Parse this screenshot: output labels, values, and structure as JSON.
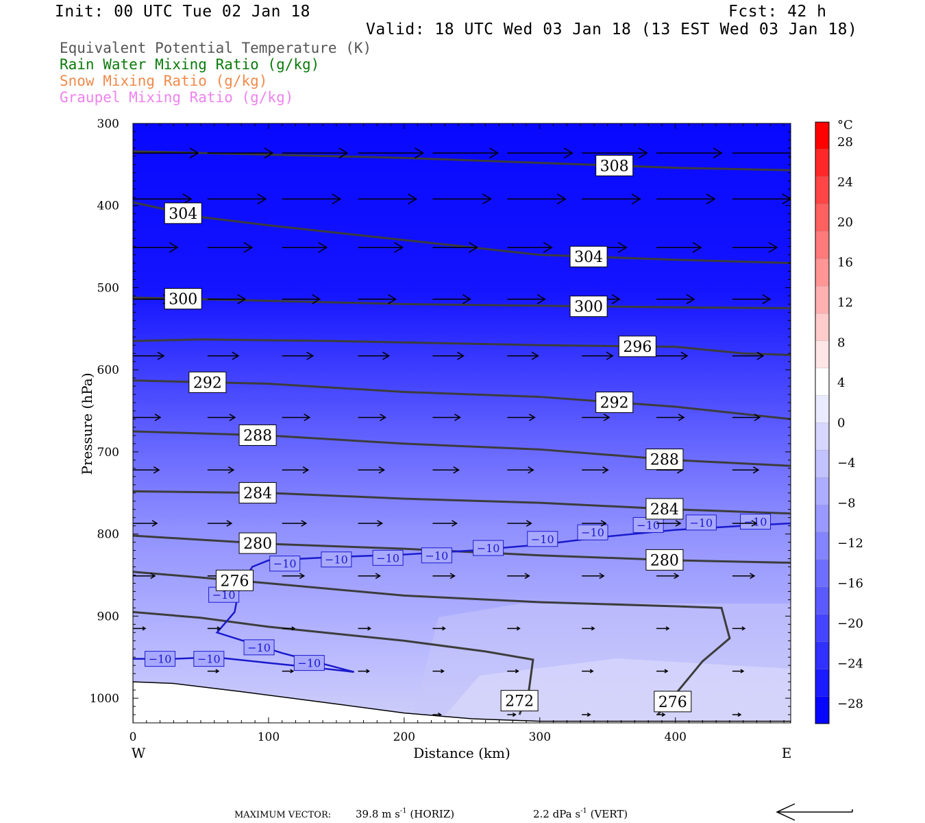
{
  "header": {
    "init": "Init: 00 UTC Tue 02 Jan 18",
    "fcst": "Fcst:   42 h",
    "valid": "Valid: 18 UTC Wed 03 Jan 18 (13 EST Wed 03 Jan 18)"
  },
  "fields": [
    {
      "label": "Equivalent Potential Temperature (K)",
      "color": "#555555"
    },
    {
      "label": "Rain Water Mixing Ratio (g/kg)",
      "color": "#0a7a0a"
    },
    {
      "label": "Snow Mixing Ratio (g/kg)",
      "color": "#f08a4b"
    },
    {
      "label": "Graupel Mixing Ratio (g/kg)",
      "color": "#ee82ee"
    }
  ],
  "footer": {
    "max_vector_label": "MAXIMUM VECTOR:",
    "horiz": "39.8 m s",
    "horiz_suffix": "(HORIZ)",
    "vert": "2.2 dPa s",
    "vert_suffix": "(VERT)",
    "exp": "-1"
  },
  "chart_data": {
    "type": "heatmap",
    "xlabel": "Distance (km)",
    "ylabel": "Pressure (hPa)",
    "x_ticks": [
      0,
      100,
      200,
      300,
      400
    ],
    "y_ticks": [
      300,
      400,
      500,
      600,
      700,
      800,
      900,
      1000
    ],
    "xlim": [
      0,
      485
    ],
    "ylim": [
      300,
      1030
    ],
    "y_inverted": true,
    "west_label": "W",
    "east_label": "E",
    "colorbar": {
      "unit": "°C",
      "ticks": [
        28,
        24,
        20,
        16,
        12,
        8,
        4,
        0,
        -4,
        -8,
        -12,
        -16,
        -20,
        -24,
        -28
      ],
      "tick_labels": [
        "28",
        "24",
        "20",
        "16",
        "12",
        "8",
        "4",
        "0",
        "−4",
        "−8",
        "−12",
        "−16",
        "−20",
        "−24",
        "−28"
      ],
      "colors": [
        "#ff0000",
        "#ff2828",
        "#ff4545",
        "#ff6060",
        "#ff7a7a",
        "#ff9595",
        "#ffb0b0",
        "#ffcccc",
        "#ffe6e6",
        "#ffffff",
        "#ebebff",
        "#d6d6ff",
        "#c2c2ff",
        "#adadff",
        "#9999ff",
        "#8484ff",
        "#6f6fff",
        "#5a5aff",
        "#4545ff",
        "#3030ff",
        "#1b1bff",
        "#0606ff"
      ]
    },
    "theta_e_contours": [
      {
        "value": 308,
        "points": [
          [
            0,
            334
          ],
          [
            100,
            338
          ],
          [
            200,
            342
          ],
          [
            300,
            348
          ],
          [
            400,
            354
          ],
          [
            485,
            357
          ]
        ],
        "labels": [
          {
            "text": "308",
            "x": 355
          }
        ]
      },
      {
        "value": 304,
        "points": [
          [
            0,
            396
          ],
          [
            50,
            414
          ],
          [
            100,
            424
          ],
          [
            200,
            442
          ],
          [
            300,
            460
          ],
          [
            400,
            466
          ],
          [
            485,
            470
          ]
        ],
        "labels": [
          {
            "text": "304",
            "x": 37
          },
          {
            "text": "304",
            "x": 336
          }
        ]
      },
      {
        "value": 300,
        "points": [
          [
            0,
            512
          ],
          [
            100,
            516
          ],
          [
            200,
            520
          ],
          [
            300,
            522
          ],
          [
            400,
            524
          ],
          [
            485,
            525
          ]
        ],
        "labels": [
          {
            "text": "300",
            "x": 37
          },
          {
            "text": "300",
            "x": 336
          }
        ]
      },
      {
        "value": 296,
        "points": [
          [
            0,
            565
          ],
          [
            50,
            563
          ],
          [
            150,
            565
          ],
          [
            300,
            570
          ],
          [
            400,
            572
          ],
          [
            450,
            580
          ],
          [
            485,
            582
          ]
        ],
        "labels": [
          {
            "text": "296",
            "x": 372
          }
        ]
      },
      {
        "value": 292,
        "points": [
          [
            0,
            613
          ],
          [
            100,
            617
          ],
          [
            200,
            627
          ],
          [
            300,
            633
          ],
          [
            400,
            645
          ],
          [
            485,
            660
          ]
        ],
        "labels": [
          {
            "text": "292",
            "x": 55
          },
          {
            "text": "292",
            "x": 355
          }
        ]
      },
      {
        "value": 288,
        "points": [
          [
            0,
            675
          ],
          [
            100,
            680
          ],
          [
            200,
            690
          ],
          [
            300,
            697
          ],
          [
            400,
            710
          ],
          [
            485,
            717
          ]
        ],
        "labels": [
          {
            "text": "288",
            "x": 92
          },
          {
            "text": "288",
            "x": 392
          }
        ]
      },
      {
        "value": 284,
        "points": [
          [
            0,
            748
          ],
          [
            100,
            750
          ],
          [
            200,
            757
          ],
          [
            300,
            762
          ],
          [
            400,
            770
          ],
          [
            485,
            775
          ]
        ],
        "labels": [
          {
            "text": "284",
            "x": 92
          },
          {
            "text": "284",
            "x": 392
          }
        ]
      },
      {
        "value": 280,
        "points": [
          [
            0,
            802
          ],
          [
            100,
            812
          ],
          [
            200,
            818
          ],
          [
            300,
            826
          ],
          [
            400,
            832
          ],
          [
            485,
            835
          ]
        ],
        "labels": [
          {
            "text": "280",
            "x": 92
          },
          {
            "text": "280",
            "x": 392
          }
        ]
      },
      {
        "value": 276,
        "points": [
          [
            0,
            846
          ],
          [
            100,
            860
          ],
          [
            200,
            875
          ],
          [
            300,
            883
          ],
          [
            400,
            888
          ],
          [
            434,
            890
          ],
          [
            440,
            927
          ],
          [
            420,
            955
          ],
          [
            400,
            995
          ],
          [
            387,
            1020
          ]
        ],
        "labels": [
          {
            "text": "276",
            "x": 75
          },
          {
            "text": "276",
            "x": 398,
            "p": 1004
          }
        ]
      },
      {
        "value": 272,
        "points": [
          [
            0,
            895
          ],
          [
            50,
            902
          ],
          [
            100,
            913
          ],
          [
            200,
            930
          ],
          [
            260,
            943
          ],
          [
            295,
            953
          ],
          [
            292,
            990
          ],
          [
            285,
            1020
          ]
        ],
        "labels": [
          {
            "text": "272",
            "x": 285,
            "p": 1003
          }
        ]
      }
    ],
    "isotherm_minus10": {
      "label": "−10",
      "points": [
        [
          0,
          952
        ],
        [
          30,
          952
        ],
        [
          60,
          950
        ],
        [
          100,
          957
        ],
        [
          130,
          962
        ],
        [
          163,
          968
        ],
        [
          110,
          945
        ],
        [
          62,
          920
        ],
        [
          75,
          895
        ],
        [
          78,
          868
        ],
        [
          88,
          840
        ],
        [
          100,
          832
        ],
        [
          150,
          828
        ],
        [
          200,
          825
        ],
        [
          250,
          820
        ],
        [
          300,
          813
        ],
        [
          350,
          803
        ],
        [
          400,
          795
        ],
        [
          450,
          790
        ],
        [
          485,
          787
        ]
      ],
      "label_positions": [
        [
          20,
          952
        ],
        [
          56,
          952
        ],
        [
          93,
          938
        ],
        [
          130,
          957
        ],
        [
          67,
          874
        ],
        [
          112,
          836
        ],
        [
          150,
          831
        ],
        [
          188,
          829
        ],
        [
          224,
          826
        ],
        [
          262,
          817
        ],
        [
          302,
          806
        ],
        [
          339,
          798
        ],
        [
          380,
          789
        ],
        [
          419,
          786
        ],
        [
          459,
          785
        ]
      ]
    },
    "wind_vectors": [
      {
        "p": 336,
        "xs": [
          0,
          55,
          110,
          166,
          221,
          276,
          331,
          386,
          442
        ],
        "len": 95
      },
      {
        "p": 392,
        "xs": [
          0,
          55,
          110,
          166,
          221,
          276,
          331,
          386,
          442
        ],
        "len": 85
      },
      {
        "p": 451,
        "xs": [
          0,
          55,
          110,
          166,
          221,
          276,
          331,
          386,
          442
        ],
        "len": 65
      },
      {
        "p": 514,
        "xs": [
          0,
          55,
          110,
          166,
          221,
          276,
          331,
          386,
          442
        ],
        "len": 55
      },
      {
        "p": 583,
        "xs": [
          0,
          55,
          110,
          166,
          221,
          276,
          331,
          386,
          442
        ],
        "len": 45
      },
      {
        "p": 658,
        "xs": [
          0,
          55,
          110,
          166,
          221,
          276,
          331,
          386,
          442
        ],
        "len": 40
      },
      {
        "p": 722,
        "xs": [
          0,
          55,
          110,
          166,
          221,
          276,
          331,
          386,
          442
        ],
        "len": 38
      },
      {
        "p": 787,
        "xs": [
          0,
          55,
          110,
          166,
          221,
          276,
          331,
          386,
          442
        ],
        "len": 35
      },
      {
        "p": 851,
        "xs": [
          0,
          55,
          110,
          166,
          221,
          276,
          331,
          386,
          442
        ],
        "len": 32
      },
      {
        "p": 915,
        "xs": [
          0,
          55,
          110,
          166,
          221,
          276,
          331,
          386,
          442
        ],
        "len": 18
      },
      {
        "p": 967,
        "xs": [
          55,
          110,
          166,
          221,
          276,
          331,
          386,
          442
        ],
        "len": 16
      },
      {
        "p": 1020,
        "xs": [
          55,
          110,
          166,
          221,
          276,
          331,
          386,
          442
        ],
        "len": 12
      }
    ],
    "terrain_top": [
      [
        0,
        980
      ],
      [
        30,
        982
      ],
      [
        80,
        992
      ],
      [
        150,
        1007
      ],
      [
        200,
        1018
      ],
      [
        250,
        1025
      ],
      [
        300,
        1028
      ],
      [
        485,
        1028
      ]
    ]
  }
}
